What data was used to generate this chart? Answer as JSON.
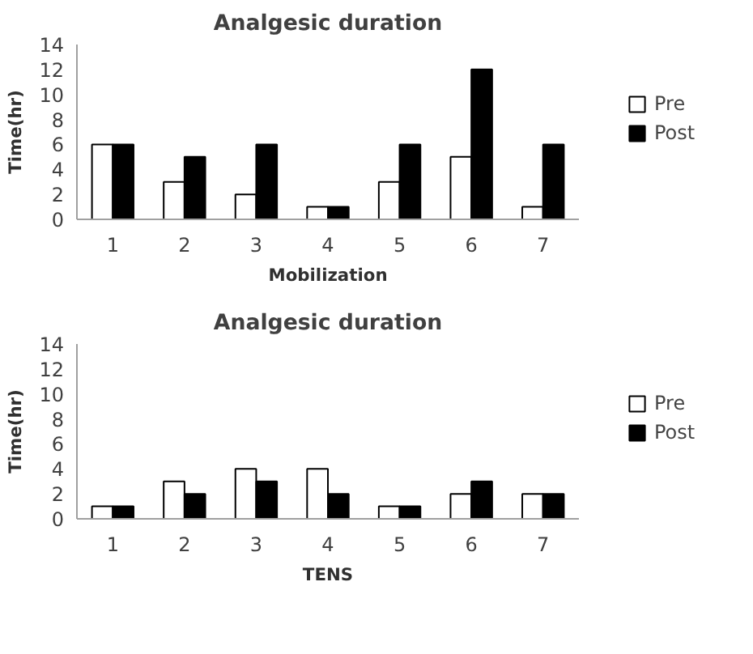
{
  "chart_data": [
    {
      "type": "bar",
      "title": "Analgesic duration",
      "xlabel": "Mobilization",
      "ylabel": "Time(hr)",
      "categories": [
        "1",
        "2",
        "3",
        "4",
        "5",
        "6",
        "7"
      ],
      "series": [
        {
          "name": "Pre",
          "color": "#ffffff",
          "values": [
            6,
            3,
            2,
            1,
            3,
            5,
            1
          ]
        },
        {
          "name": "Post",
          "color": "#000000",
          "values": [
            6,
            5,
            6,
            1,
            6,
            12,
            6
          ]
        }
      ],
      "ylim": [
        0,
        14
      ],
      "yticks": [
        0,
        2,
        4,
        6,
        8,
        10,
        12,
        14
      ],
      "grid": false,
      "legend": "right"
    },
    {
      "type": "bar",
      "title": "Analgesic duration",
      "xlabel": "TENS",
      "ylabel": "Time(hr)",
      "categories": [
        "1",
        "2",
        "3",
        "4",
        "5",
        "6",
        "7"
      ],
      "series": [
        {
          "name": "Pre",
          "color": "#ffffff",
          "values": [
            1,
            3,
            4,
            4,
            1,
            2,
            2
          ]
        },
        {
          "name": "Post",
          "color": "#000000",
          "values": [
            1,
            2,
            3,
            2,
            1,
            3,
            2
          ]
        }
      ],
      "ylim": [
        0,
        14
      ],
      "yticks": [
        0,
        2,
        4,
        6,
        8,
        10,
        12,
        14
      ],
      "grid": false,
      "legend": "right"
    }
  ]
}
